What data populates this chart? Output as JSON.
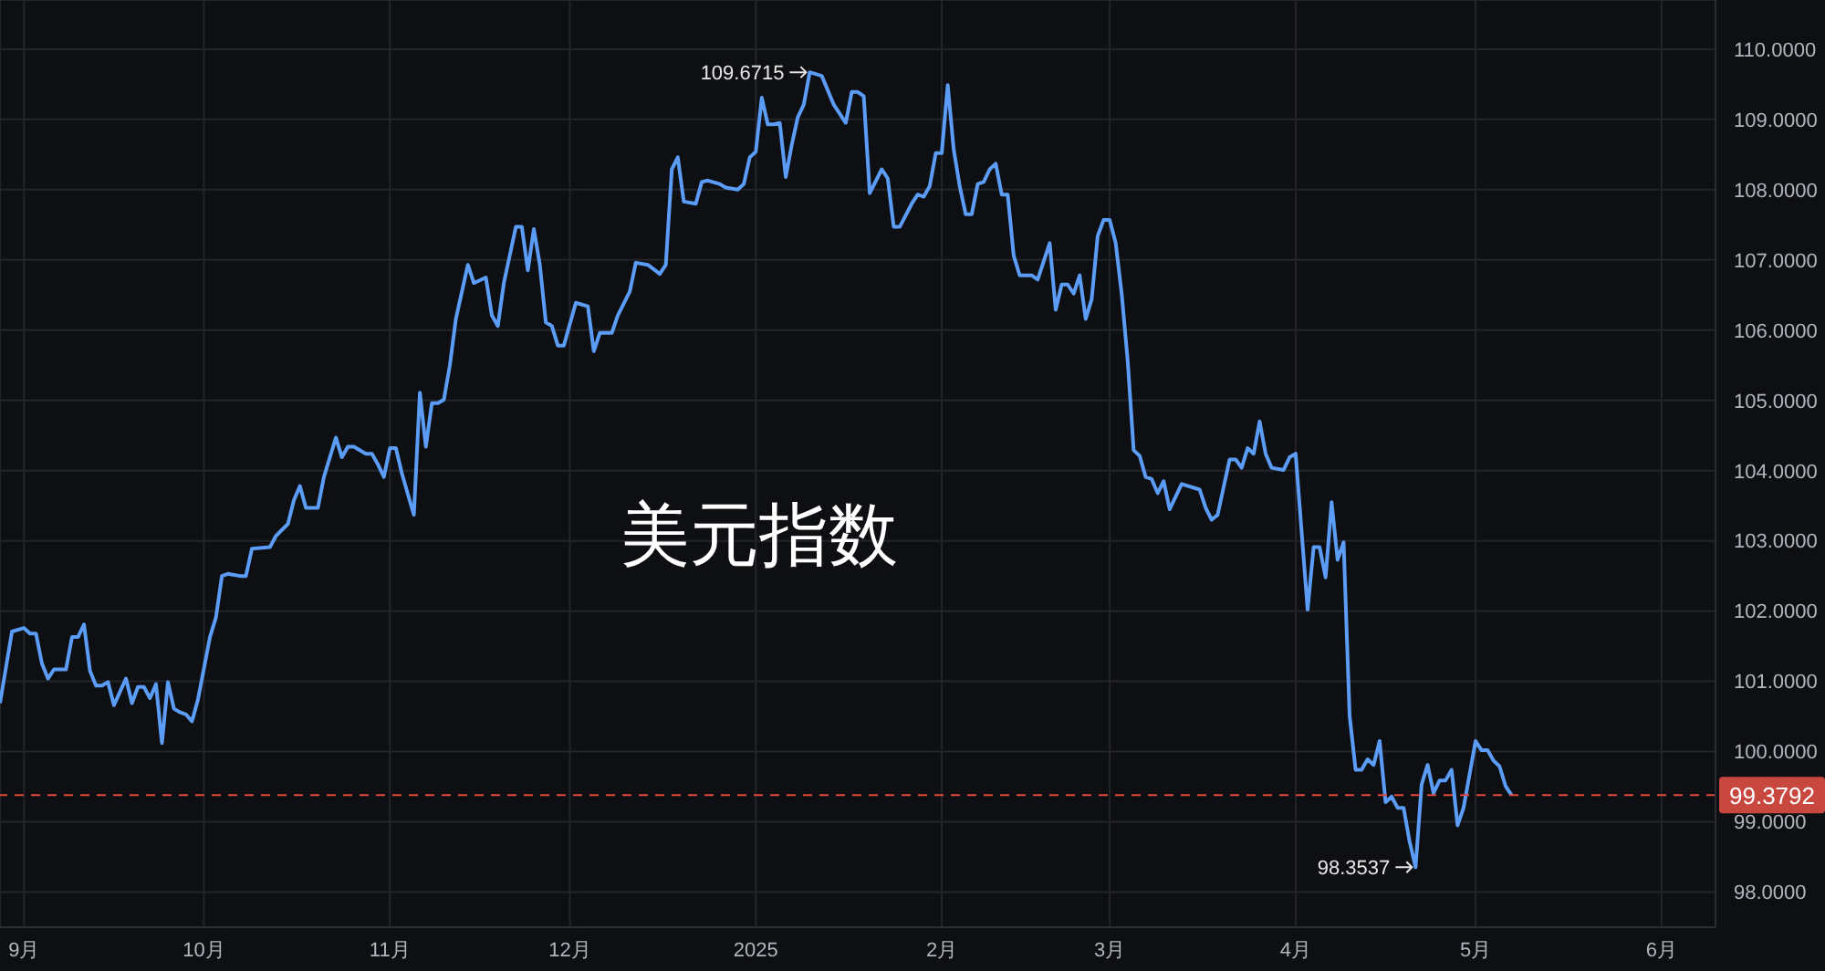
{
  "chart_data": {
    "type": "line",
    "title": "美元指数",
    "x": [
      "2024-08-28",
      "2024-08-30",
      "2024-09-01",
      "2024-09-02",
      "2024-09-03",
      "2024-09-04",
      "2024-09-05",
      "2024-09-06",
      "2024-09-08",
      "2024-09-09",
      "2024-09-10",
      "2024-09-11",
      "2024-09-12",
      "2024-09-13",
      "2024-09-14",
      "2024-09-15",
      "2024-09-16",
      "2024-09-18",
      "2024-09-19",
      "2024-09-20",
      "2024-09-21",
      "2024-09-22",
      "2024-09-23",
      "2024-09-24",
      "2024-09-25",
      "2024-09-26",
      "2024-09-27",
      "2024-09-28",
      "2024-09-29",
      "2024-09-30",
      "2024-10-02",
      "2024-10-03",
      "2024-10-04",
      "2024-10-05",
      "2024-10-07",
      "2024-10-08",
      "2024-10-09",
      "2024-10-12",
      "2024-10-13",
      "2024-10-15",
      "2024-10-16",
      "2024-10-17",
      "2024-10-18",
      "2024-10-20",
      "2024-10-21",
      "2024-10-23",
      "2024-10-24",
      "2024-10-25",
      "2024-10-26",
      "2024-10-28",
      "2024-10-29",
      "2024-10-30",
      "2024-10-31",
      "2024-11-01",
      "2024-11-02",
      "2024-11-03",
      "2024-11-05",
      "2024-11-06",
      "2024-11-07",
      "2024-11-08",
      "2024-11-09",
      "2024-11-10",
      "2024-11-11",
      "2024-11-12",
      "2024-11-14",
      "2024-11-15",
      "2024-11-17",
      "2024-11-18",
      "2024-11-19",
      "2024-11-20",
      "2024-11-22",
      "2024-11-23",
      "2024-11-24",
      "2024-11-25",
      "2024-11-26",
      "2024-11-27",
      "2024-11-28",
      "2024-11-29",
      "2024-11-30",
      "2024-12-02",
      "2024-12-04",
      "2024-12-05",
      "2024-12-06",
      "2024-12-08",
      "2024-12-09",
      "2024-12-11",
      "2024-12-12",
      "2024-12-14",
      "2024-12-16",
      "2024-12-17",
      "2024-12-18",
      "2024-12-19",
      "2024-12-20",
      "2024-12-22",
      "2024-12-23",
      "2024-12-24",
      "2024-12-26",
      "2024-12-27",
      "2024-12-29",
      "2024-12-30",
      "2024-12-31",
      "2025-01-01",
      "2025-01-02",
      "2025-01-03",
      "2025-01-04",
      "2025-01-05",
      "2025-01-06",
      "2025-01-07",
      "2025-01-08",
      "2025-01-09",
      "2025-01-10",
      "2025-01-12",
      "2025-01-14",
      "2025-01-16",
      "2025-01-17",
      "2025-01-18",
      "2025-01-19",
      "2025-01-20",
      "2025-01-22",
      "2025-01-23",
      "2025-01-24",
      "2025-01-25",
      "2025-01-27",
      "2025-01-28",
      "2025-01-29",
      "2025-01-30",
      "2025-01-31",
      "2025-02-01",
      "2025-02-02",
      "2025-02-03",
      "2025-02-04",
      "2025-02-05",
      "2025-02-06",
      "2025-02-07",
      "2025-02-08",
      "2025-02-09",
      "2025-02-10",
      "2025-02-11",
      "2025-02-12",
      "2025-02-13",
      "2025-02-14",
      "2025-02-16",
      "2025-02-17",
      "2025-02-19",
      "2025-02-20",
      "2025-02-21",
      "2025-02-22",
      "2025-02-23",
      "2025-02-24",
      "2025-02-25",
      "2025-02-26",
      "2025-02-27",
      "2025-02-28",
      "2025-03-01",
      "2025-03-02",
      "2025-03-03",
      "2025-03-04",
      "2025-03-05",
      "2025-03-06",
      "2025-03-07",
      "2025-03-08",
      "2025-03-09",
      "2025-03-10",
      "2025-03-11",
      "2025-03-13",
      "2025-03-16",
      "2025-03-17",
      "2025-03-18",
      "2025-03-19",
      "2025-03-21",
      "2025-03-22",
      "2025-03-23",
      "2025-03-24",
      "2025-03-25",
      "2025-03-26",
      "2025-03-27",
      "2025-03-28",
      "2025-03-30",
      "2025-03-31",
      "2025-04-01",
      "2025-04-03",
      "2025-04-04",
      "2025-04-05",
      "2025-04-06",
      "2025-04-07",
      "2025-04-08",
      "2025-04-09",
      "2025-04-10",
      "2025-04-11",
      "2025-04-12",
      "2025-04-13",
      "2025-04-14",
      "2025-04-15",
      "2025-04-16",
      "2025-04-17",
      "2025-04-18",
      "2025-04-19",
      "2025-04-20",
      "2025-04-21",
      "2025-04-22",
      "2025-04-23",
      "2025-04-24",
      "2025-04-25",
      "2025-04-26",
      "2025-04-27",
      "2025-04-28",
      "2025-04-29",
      "2025-05-01",
      "2025-05-02",
      "2025-05-03",
      "2025-05-04",
      "2025-05-05",
      "2025-05-06",
      "2025-05-07"
    ],
    "series": [
      {
        "color": "#5b9cf6",
        "values": [
          100.69,
          101.71,
          101.76,
          101.68,
          101.68,
          101.25,
          101.04,
          101.17,
          101.17,
          101.63,
          101.63,
          101.81,
          101.15,
          100.94,
          100.94,
          100.99,
          100.66,
          101.04,
          100.69,
          100.92,
          100.92,
          100.76,
          100.96,
          100.12,
          100.99,
          100.61,
          100.56,
          100.53,
          100.43,
          100.74,
          101.63,
          101.91,
          102.5,
          102.53,
          102.5,
          102.5,
          102.89,
          102.91,
          103.07,
          103.24,
          103.58,
          103.78,
          103.47,
          103.47,
          103.91,
          104.47,
          104.19,
          104.34,
          104.34,
          104.24,
          104.24,
          104.09,
          103.91,
          104.32,
          104.32,
          103.96,
          103.37,
          105.11,
          104.34,
          104.96,
          104.96,
          105.01,
          105.5,
          106.16,
          106.93,
          106.67,
          106.75,
          106.21,
          106.06,
          106.67,
          107.47,
          107.47,
          106.85,
          107.44,
          106.93,
          106.11,
          106.06,
          105.78,
          105.78,
          106.39,
          106.34,
          105.7,
          105.96,
          105.96,
          106.21,
          106.55,
          106.96,
          106.93,
          106.8,
          106.93,
          108.29,
          108.46,
          107.83,
          107.8,
          108.11,
          108.13,
          108.08,
          108.03,
          108.0,
          108.08,
          108.46,
          108.54,
          109.31,
          108.93,
          108.93,
          108.95,
          108.18,
          108.64,
          109.03,
          109.21,
          109.6715,
          109.62,
          109.21,
          108.95,
          109.39,
          109.39,
          109.33,
          107.95,
          108.29,
          108.16,
          107.47,
          107.47,
          107.8,
          107.93,
          107.9,
          108.05,
          108.52,
          108.52,
          109.49,
          108.57,
          108.05,
          107.65,
          107.65,
          108.08,
          108.11,
          108.29,
          108.37,
          107.93,
          107.93,
          107.06,
          106.78,
          106.78,
          106.72,
          107.24,
          106.29,
          106.65,
          106.65,
          106.52,
          106.78,
          106.16,
          106.44,
          107.34,
          107.57,
          107.57,
          107.24,
          106.52,
          105.57,
          104.29,
          104.21,
          103.91,
          103.88,
          103.68,
          103.85,
          103.45,
          103.81,
          103.73,
          103.47,
          103.3,
          103.37,
          104.16,
          104.16,
          104.04,
          104.32,
          104.24,
          104.7,
          104.24,
          104.04,
          104.01,
          104.19,
          104.24,
          102.02,
          102.91,
          102.91,
          102.48,
          103.55,
          102.73,
          102.98,
          100.51,
          99.74,
          99.74,
          99.89,
          99.81,
          100.15,
          99.28,
          99.36,
          99.2,
          99.2,
          98.72,
          98.3537,
          99.53,
          99.81,
          99.41,
          99.59,
          99.59,
          99.74,
          98.95,
          99.2,
          100.15,
          100.02,
          100.02,
          99.87,
          99.79,
          99.51,
          99.3792
        ]
      }
    ],
    "xlim": [
      "2024-08-28",
      "2025-06-10"
    ],
    "xticks": [
      {
        "value": "2024-09-01",
        "label": "9月"
      },
      {
        "value": "2024-10-01",
        "label": "10月"
      },
      {
        "value": "2024-11-01",
        "label": "11月"
      },
      {
        "value": "2024-12-01",
        "label": "12月"
      },
      {
        "value": "2025-01-01",
        "label": "2025"
      },
      {
        "value": "2025-02-01",
        "label": "2月"
      },
      {
        "value": "2025-03-01",
        "label": "3月"
      },
      {
        "value": "2025-04-01",
        "label": "4月"
      },
      {
        "value": "2025-05-01",
        "label": "5月"
      },
      {
        "value": "2025-06-01",
        "label": "6月"
      }
    ],
    "ylim": [
      97.5,
      110.7
    ],
    "yticks": [
      {
        "value": 98,
        "label": "98.0000"
      },
      {
        "value": 99,
        "label": "99.0000"
      },
      {
        "value": 100,
        "label": "100.0000"
      },
      {
        "value": 101,
        "label": "101.0000"
      },
      {
        "value": 102,
        "label": "102.0000"
      },
      {
        "value": 103,
        "label": "103.0000"
      },
      {
        "value": 104,
        "label": "104.0000"
      },
      {
        "value": 105,
        "label": "105.0000"
      },
      {
        "value": 106,
        "label": "106.0000"
      },
      {
        "value": 107,
        "label": "107.0000"
      },
      {
        "value": 108,
        "label": "108.0000"
      },
      {
        "value": 109,
        "label": "109.0000"
      },
      {
        "value": 110,
        "label": "110.0000"
      }
    ],
    "grid": true,
    "ref_lines": [
      {
        "axis": "y",
        "value": 99.3792,
        "label": "99.3792",
        "color": "#e0483c",
        "line_style": "dashed"
      }
    ],
    "annotations": [
      {
        "text": "109.6715",
        "x": "2025-01-10",
        "y": 109.6715
      },
      {
        "text": "98.3537",
        "x": "2025-04-21",
        "y": 98.3537
      }
    ]
  }
}
